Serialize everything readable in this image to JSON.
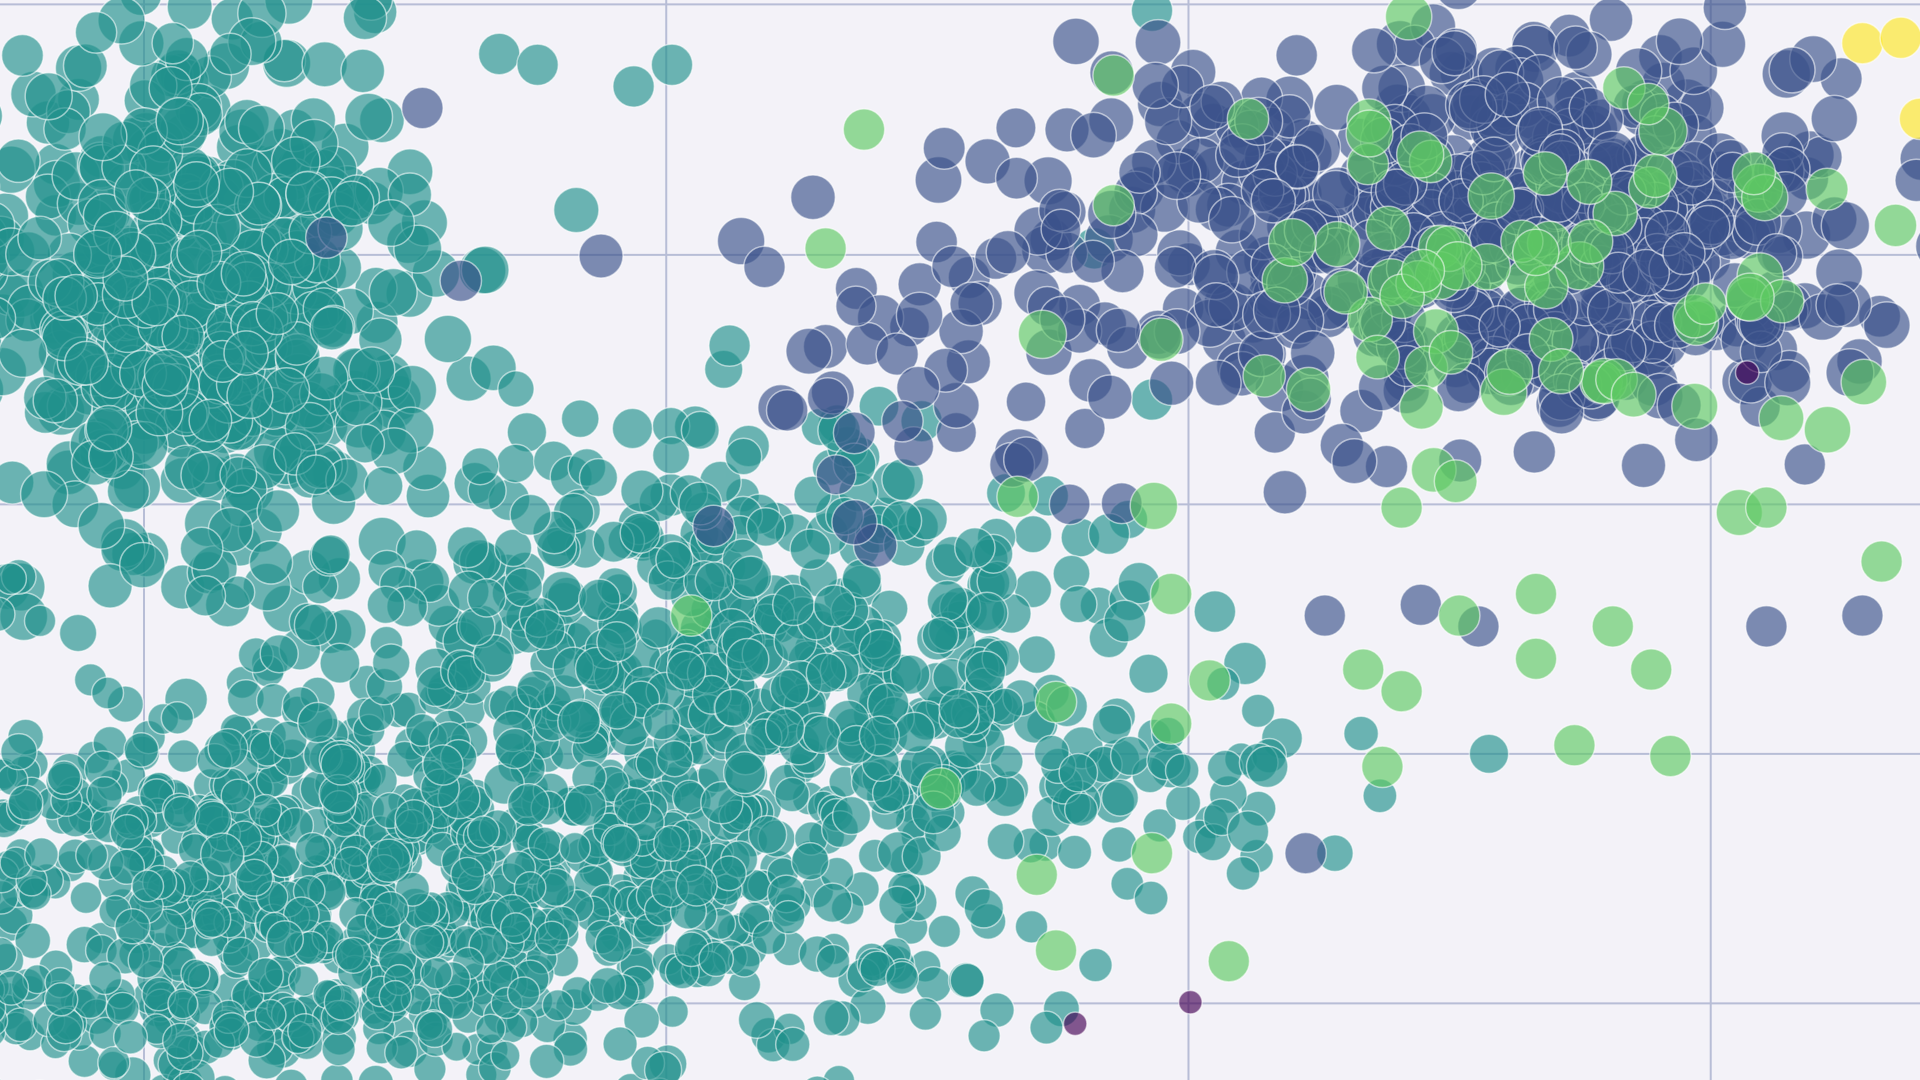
{
  "chart_data": {
    "type": "scatter",
    "title": "",
    "xlabel": "",
    "ylabel": "",
    "xlim": [
      0,
      100
    ],
    "ylim": [
      0,
      100
    ],
    "grid": true,
    "x_gridlines": [
      7.5,
      34.7,
      61.9,
      89.1
    ],
    "y_gridlines": [
      99.6,
      76.4,
      53.3,
      30.2,
      7.1
    ],
    "legend": "none",
    "colorscale": [
      "#440154",
      "#3b528b",
      "#21918c",
      "#5ec962",
      "#fde725"
    ],
    "point_opacity": 0.65,
    "series": [
      {
        "color": "#21918c",
        "clusters": [
          {
            "cx": 10,
            "cy": 72,
            "sx": 6,
            "sy": 12,
            "n": 520,
            "seed": 11,
            "r": [
              1.15,
              1.35
            ]
          },
          {
            "cx": 22,
            "cy": 20,
            "sx": 14,
            "sy": 9,
            "n": 900,
            "seed": 12,
            "r": [
              0.85,
              1.05
            ]
          },
          {
            "cx": 33,
            "cy": 42,
            "sx": 9,
            "sy": 10,
            "n": 260,
            "seed": 13,
            "r": [
              1.0,
              1.2
            ]
          },
          {
            "cx": 48,
            "cy": 38,
            "sx": 7,
            "sy": 8,
            "n": 150,
            "seed": 14,
            "r": [
              1.0,
              1.2
            ]
          },
          {
            "cx": 8,
            "cy": 6,
            "sx": 12,
            "sy": 4,
            "n": 140,
            "seed": 15,
            "r": [
              0.8,
              1.0
            ]
          },
          {
            "cx": 62,
            "cy": 28,
            "sx": 6,
            "sy": 5,
            "n": 40,
            "seed": 16,
            "r": [
              0.9,
              1.1
            ]
          }
        ],
        "points": [
          [
            5,
            97
          ],
          [
            9,
            96
          ],
          [
            12,
            95
          ],
          [
            26,
            95
          ],
          [
            28,
            94
          ],
          [
            33,
            92
          ],
          [
            35,
            94
          ],
          [
            57,
            77
          ],
          [
            60,
            63
          ],
          [
            66,
            29
          ],
          [
            65,
            23
          ],
          [
            48,
            61
          ],
          [
            38,
            68
          ],
          [
            60,
            99
          ]
        ]
      },
      {
        "color": "#3b528b",
        "clusters": [
          {
            "cx": 76,
            "cy": 79,
            "sx": 10,
            "sy": 9,
            "n": 520,
            "seed": 21,
            "r": [
              1.15,
              1.35
            ]
          },
          {
            "cx": 50,
            "cy": 70,
            "sx": 6,
            "sy": 9,
            "n": 55,
            "seed": 22,
            "r": [
              1.1,
              1.3
            ]
          },
          {
            "cx": 86,
            "cy": 73,
            "sx": 6,
            "sy": 7,
            "n": 110,
            "seed": 23,
            "r": [
              1.1,
              1.3
            ]
          }
        ],
        "points": [
          [
            22,
            90
          ],
          [
            17,
            78
          ],
          [
            24,
            74
          ],
          [
            41,
            62
          ],
          [
            47,
            61
          ],
          [
            69,
            43
          ],
          [
            74,
            44
          ],
          [
            77,
            42
          ],
          [
            92,
            42
          ],
          [
            94,
            57
          ],
          [
            97,
            43
          ],
          [
            68,
            21
          ]
        ]
      },
      {
        "color": "#5ec962",
        "clusters": [
          {
            "cx": 80,
            "cy": 73,
            "sx": 9,
            "sy": 10,
            "n": 75,
            "seed": 31,
            "r": [
              1.15,
              1.35
            ]
          }
        ],
        "points": [
          [
            45,
            88
          ],
          [
            58,
            93
          ],
          [
            65,
            89
          ],
          [
            43,
            77
          ],
          [
            58,
            81
          ],
          [
            53,
            54
          ],
          [
            55,
            35
          ],
          [
            61,
            45
          ],
          [
            63,
            37
          ],
          [
            71,
            38
          ],
          [
            73,
            36
          ],
          [
            76,
            43
          ],
          [
            80,
            45
          ],
          [
            84,
            42
          ],
          [
            86,
            38
          ],
          [
            87,
            30
          ],
          [
            80,
            39
          ],
          [
            73,
            53
          ],
          [
            72,
            29
          ],
          [
            60,
            21
          ],
          [
            55,
            12
          ],
          [
            61,
            33
          ],
          [
            36,
            43
          ],
          [
            49,
            27
          ],
          [
            64,
            11
          ],
          [
            54,
            19
          ],
          [
            98,
            48
          ],
          [
            92,
            53
          ],
          [
            82,
            31
          ]
        ]
      },
      {
        "color": "#440154",
        "points": [
          [
            91,
            65.5
          ],
          [
            56,
            5.2
          ],
          [
            62,
            7.2
          ]
        ]
      },
      {
        "color": "#fde725",
        "points": [
          [
            97,
            96
          ],
          [
            99,
            96.5
          ],
          [
            100,
            89
          ]
        ]
      }
    ]
  }
}
